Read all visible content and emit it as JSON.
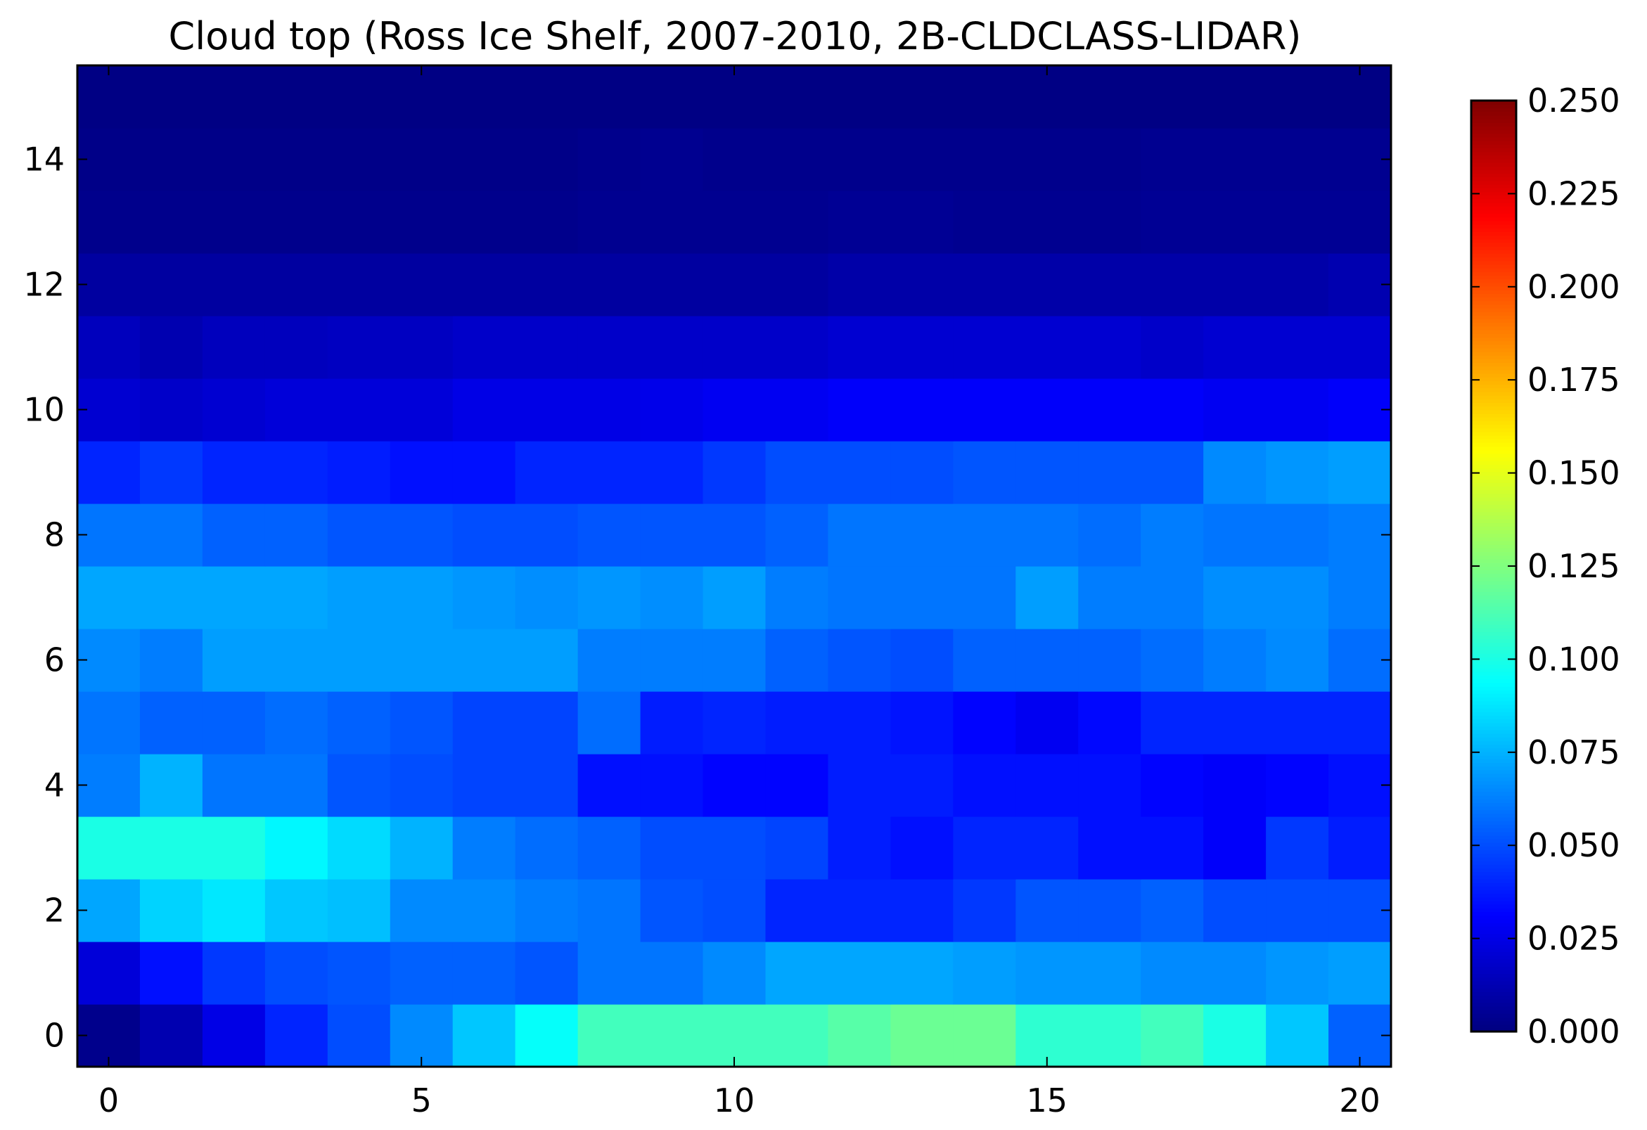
{
  "chart_data": {
    "type": "heatmap",
    "title": "Cloud top (Ross Ice Shelf, 2007-2010, 2B-CLDCLASS-LIDAR)",
    "xlabel": "",
    "ylabel": "",
    "colormap": "jet",
    "xlim": [
      -0.5,
      20.5
    ],
    "ylim": [
      -0.5,
      15.5
    ],
    "xticks": [
      0,
      5,
      10,
      15,
      20
    ],
    "yticks": [
      0,
      2,
      4,
      6,
      8,
      10,
      12,
      14
    ],
    "colorbar": {
      "vmin": 0.0,
      "vmax": 0.25,
      "ticks": [
        0.0,
        0.025,
        0.05,
        0.075,
        0.1,
        0.125,
        0.15,
        0.175,
        0.2,
        0.225,
        0.25
      ],
      "tick_labels": [
        "0.000",
        "0.025",
        "0.050",
        "0.075",
        "0.100",
        "0.125",
        "0.150",
        "0.175",
        "0.200",
        "0.225",
        "0.250"
      ]
    },
    "grid": false,
    "rows_y": [
      0,
      1,
      2,
      3,
      4,
      5,
      6,
      7,
      8,
      9,
      10,
      11,
      12,
      13,
      14,
      15
    ],
    "cols_x": [
      0,
      1,
      2,
      3,
      4,
      5,
      6,
      7,
      8,
      9,
      10,
      11,
      12,
      13,
      14,
      15,
      16,
      17,
      18,
      19,
      20
    ],
    "values": [
      [
        0.003,
        0.012,
        0.025,
        0.04,
        0.05,
        0.065,
        0.08,
        0.095,
        0.11,
        0.11,
        0.11,
        0.11,
        0.115,
        0.12,
        0.12,
        0.105,
        0.105,
        0.11,
        0.1,
        0.08,
        0.055
      ],
      [
        0.022,
        0.035,
        0.045,
        0.05,
        0.052,
        0.055,
        0.055,
        0.052,
        0.06,
        0.06,
        0.065,
        0.072,
        0.072,
        0.072,
        0.07,
        0.068,
        0.068,
        0.065,
        0.065,
        0.068,
        0.07
      ],
      [
        0.072,
        0.083,
        0.088,
        0.08,
        0.078,
        0.065,
        0.065,
        0.062,
        0.06,
        0.052,
        0.05,
        0.04,
        0.04,
        0.04,
        0.045,
        0.052,
        0.052,
        0.055,
        0.05,
        0.05,
        0.05
      ],
      [
        0.1,
        0.1,
        0.1,
        0.092,
        0.085,
        0.075,
        0.062,
        0.058,
        0.055,
        0.05,
        0.05,
        0.048,
        0.038,
        0.035,
        0.04,
        0.04,
        0.035,
        0.035,
        0.03,
        0.045,
        0.038
      ],
      [
        0.062,
        0.075,
        0.06,
        0.06,
        0.052,
        0.05,
        0.048,
        0.048,
        0.035,
        0.035,
        0.032,
        0.032,
        0.038,
        0.038,
        0.035,
        0.035,
        0.035,
        0.032,
        0.03,
        0.032,
        0.035
      ],
      [
        0.06,
        0.055,
        0.055,
        0.058,
        0.055,
        0.052,
        0.048,
        0.048,
        0.058,
        0.038,
        0.04,
        0.038,
        0.038,
        0.036,
        0.032,
        0.028,
        0.033,
        0.04,
        0.04,
        0.04,
        0.04
      ],
      [
        0.065,
        0.062,
        0.07,
        0.07,
        0.07,
        0.07,
        0.07,
        0.07,
        0.062,
        0.062,
        0.062,
        0.055,
        0.052,
        0.05,
        0.055,
        0.055,
        0.055,
        0.058,
        0.062,
        0.065,
        0.058
      ],
      [
        0.072,
        0.072,
        0.072,
        0.072,
        0.07,
        0.07,
        0.068,
        0.066,
        0.068,
        0.066,
        0.07,
        0.062,
        0.06,
        0.06,
        0.06,
        0.07,
        0.062,
        0.062,
        0.066,
        0.066,
        0.062
      ],
      [
        0.06,
        0.06,
        0.055,
        0.055,
        0.052,
        0.052,
        0.05,
        0.05,
        0.052,
        0.052,
        0.052,
        0.055,
        0.06,
        0.06,
        0.06,
        0.06,
        0.058,
        0.062,
        0.06,
        0.06,
        0.062
      ],
      [
        0.04,
        0.045,
        0.04,
        0.04,
        0.038,
        0.035,
        0.035,
        0.04,
        0.04,
        0.04,
        0.045,
        0.05,
        0.05,
        0.05,
        0.052,
        0.052,
        0.052,
        0.052,
        0.065,
        0.068,
        0.07
      ],
      [
        0.02,
        0.018,
        0.02,
        0.022,
        0.022,
        0.022,
        0.025,
        0.025,
        0.025,
        0.026,
        0.028,
        0.028,
        0.03,
        0.03,
        0.03,
        0.03,
        0.03,
        0.03,
        0.028,
        0.028,
        0.03
      ],
      [
        0.015,
        0.012,
        0.015,
        0.015,
        0.016,
        0.016,
        0.018,
        0.018,
        0.018,
        0.018,
        0.018,
        0.018,
        0.02,
        0.02,
        0.02,
        0.02,
        0.02,
        0.018,
        0.02,
        0.02,
        0.02
      ],
      [
        0.008,
        0.008,
        0.008,
        0.008,
        0.008,
        0.008,
        0.008,
        0.008,
        0.008,
        0.008,
        0.008,
        0.008,
        0.01,
        0.01,
        0.01,
        0.01,
        0.01,
        0.01,
        0.01,
        0.01,
        0.012
      ],
      [
        0.003,
        0.003,
        0.003,
        0.003,
        0.003,
        0.003,
        0.003,
        0.003,
        0.004,
        0.004,
        0.004,
        0.004,
        0.005,
        0.005,
        0.004,
        0.004,
        0.004,
        0.005,
        0.005,
        0.005,
        0.005
      ],
      [
        0.002,
        0.002,
        0.002,
        0.002,
        0.002,
        0.002,
        0.002,
        0.002,
        0.003,
        0.004,
        0.003,
        0.003,
        0.003,
        0.003,
        0.003,
        0.003,
        0.003,
        0.004,
        0.004,
        0.004,
        0.004
      ],
      [
        0.001,
        0.001,
        0.001,
        0.001,
        0.001,
        0.001,
        0.001,
        0.001,
        0.001,
        0.001,
        0.001,
        0.001,
        0.001,
        0.001,
        0.001,
        0.001,
        0.001,
        0.001,
        0.001,
        0.001,
        0.001
      ]
    ]
  }
}
